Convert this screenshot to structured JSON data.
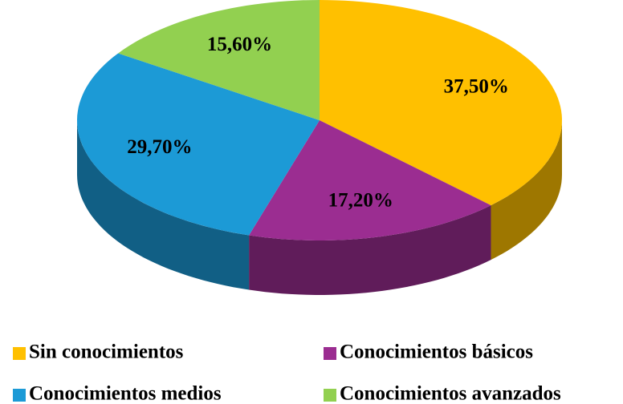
{
  "chart_data": {
    "type": "pie",
    "categories": [
      "Sin conocimientos",
      "Conocimientos básicos",
      "Conocimientos medios",
      "Conocimientos avanzados"
    ],
    "values": [
      37.5,
      17.2,
      29.7,
      15.6
    ],
    "value_labels": [
      "37,50%",
      "17,20%",
      "29,70%",
      "15,60%"
    ],
    "colors": [
      "#FFC000",
      "#9B2D91",
      "#1C9AD6",
      "#92D050"
    ],
    "legend": "bottom"
  }
}
